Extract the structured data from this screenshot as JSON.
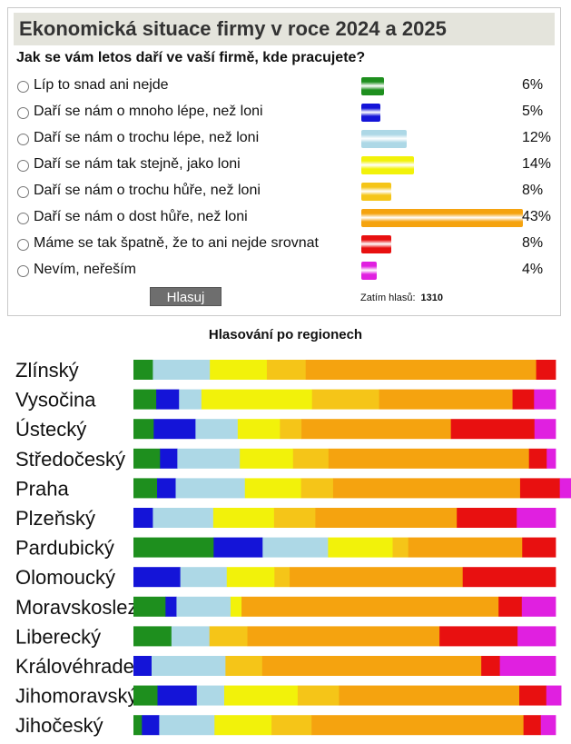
{
  "poll": {
    "title": "Ekonomická situace firmy v roce 2024 a 2025",
    "question": "Jak se vám letos daří ve vaší firmě, kde pracujete?",
    "options": [
      {
        "label": "Líp to snad ani nejde",
        "percent": 6,
        "percent_text": "6%",
        "color": "#1e8f1e"
      },
      {
        "label": "Daří se nám o mnoho lépe, než loni",
        "percent": 5,
        "percent_text": "5%",
        "color": "#1414d8"
      },
      {
        "label": "Daří se nám o trochu lépe, než loni",
        "percent": 12,
        "percent_text": "12%",
        "color": "#add8e6"
      },
      {
        "label": "Daří se nám tak stejně, jako loni",
        "percent": 14,
        "percent_text": "14%",
        "color": "#f2f20a"
      },
      {
        "label": "Daří se nám o trochu hůře, než loni",
        "percent": 8,
        "percent_text": "8%",
        "color": "#f5c518"
      },
      {
        "label": "Daří se nám o dost hůře, než loni",
        "percent": 43,
        "percent_text": "43%",
        "color": "#f5a30f"
      },
      {
        "label": "Máme se tak špatně, že to ani nejde srovnat",
        "percent": 8,
        "percent_text": "8%",
        "color": "#e81010"
      },
      {
        "label": "Nevím, neřeším",
        "percent": 4,
        "percent_text": "4%",
        "color": "#e020e0"
      }
    ],
    "vote_button": "Hlasuj",
    "total_label": "Zatím hlasů:",
    "total_value": "1310"
  },
  "chart_data": {
    "type": "bar",
    "orientation": "horizontal",
    "stacked": true,
    "title": "Hlasování po regionech",
    "categories": [
      "Zlínský",
      "Vysočina",
      "Ústecký",
      "Středočeský",
      "Praha",
      "Plzeňský",
      "Pardubický",
      "Olomoucký",
      "Moravskoslezský",
      "Liberecký",
      "Královéhradecký",
      "Jihomoravský",
      "Jihočeský"
    ],
    "series": [
      {
        "color": "#1e8f1e",
        "values": [
          4.6,
          5.4,
          4.8,
          6.3,
          5.6,
          0,
          19.0,
          0,
          7.6,
          9.0,
          0,
          5.7,
          2.0
        ]
      },
      {
        "color": "#1414d8",
        "values": [
          0,
          5.4,
          9.9,
          4.1,
          4.4,
          4.6,
          11.6,
          11.1,
          2.6,
          0,
          4.3,
          9.3,
          4.1
        ]
      },
      {
        "color": "#add8e6",
        "values": [
          13.5,
          5.3,
          10.0,
          14.8,
          16.4,
          14.3,
          15.5,
          11.0,
          12.8,
          9.0,
          17.5,
          6.5,
          13.1
        ]
      },
      {
        "color": "#f2f20a",
        "values": [
          13.5,
          26.2,
          10.0,
          12.6,
          13.3,
          14.4,
          15.3,
          11.3,
          2.6,
          0,
          0,
          17.4,
          13.5
        ]
      },
      {
        "color": "#f5c518",
        "values": [
          9.2,
          15.9,
          5.1,
          8.4,
          7.6,
          9.8,
          3.7,
          3.6,
          0,
          9.0,
          8.7,
          9.8,
          9.5
        ]
      },
      {
        "color": "#f5a30f",
        "values": [
          54.6,
          31.6,
          35.4,
          47.5,
          44.3,
          33.5,
          27.0,
          41.0,
          60.9,
          45.5,
          51.9,
          42.7,
          50.2
        ]
      },
      {
        "color": "#e81010",
        "values": [
          4.6,
          5.1,
          19.8,
          4.2,
          9.4,
          14.2,
          7.9,
          22.0,
          5.5,
          18.5,
          4.4,
          6.4,
          4.1
        ]
      },
      {
        "color": "#e020e0",
        "values": [
          0,
          5.1,
          5.0,
          2.1,
          3.5,
          9.2,
          0,
          0,
          8.0,
          9.0,
          13.2,
          3.5,
          3.5
        ]
      }
    ],
    "xlim": [
      0,
      100
    ]
  }
}
